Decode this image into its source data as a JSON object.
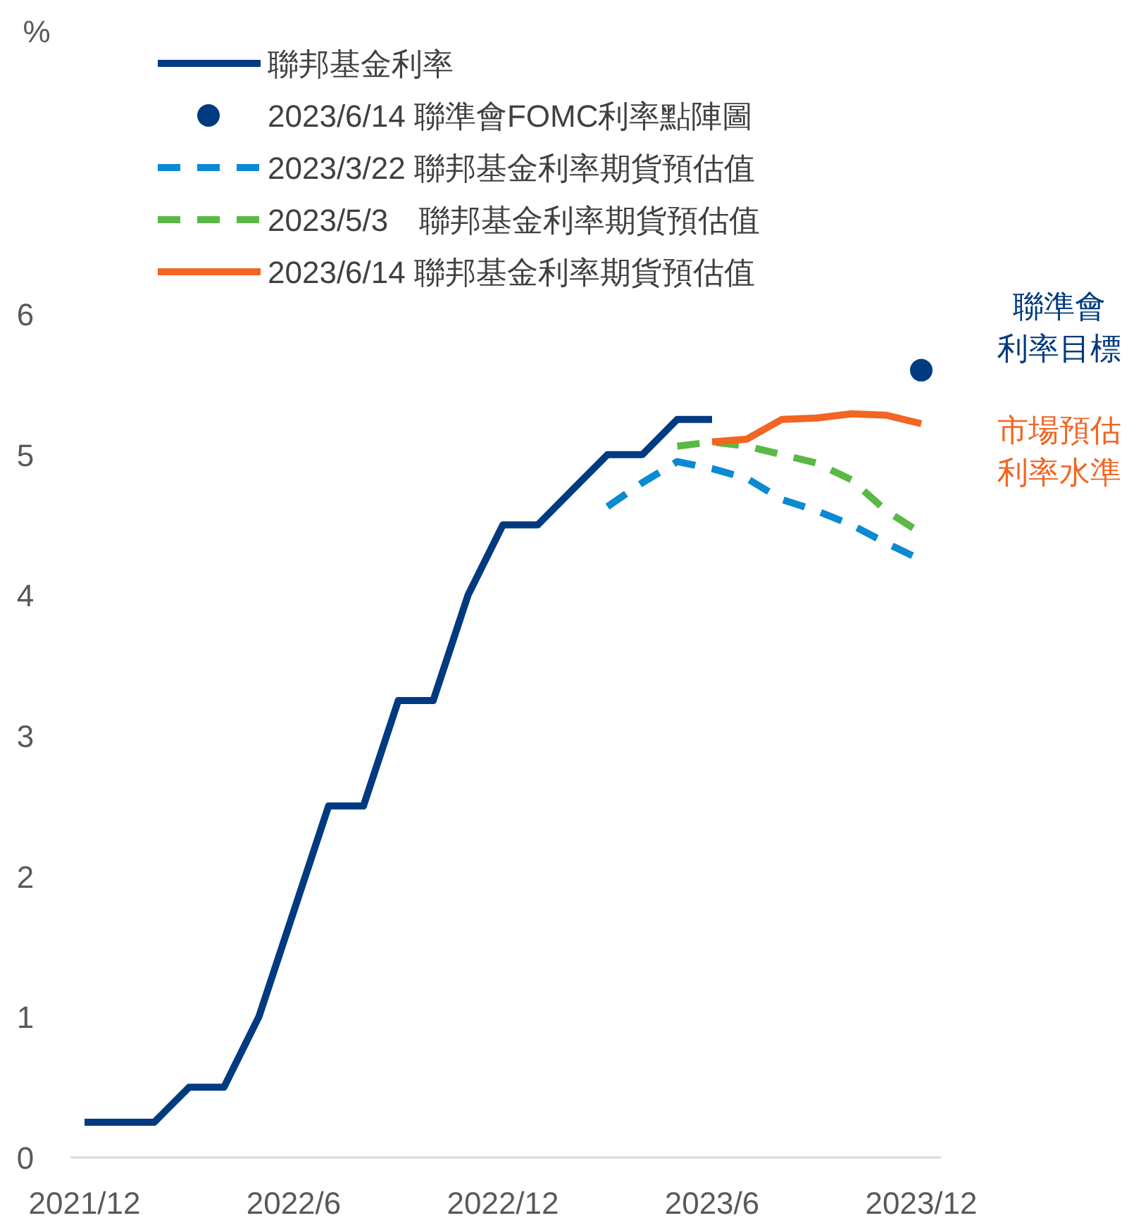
{
  "chart_data": {
    "type": "line",
    "categories": [
      "2021/12",
      null,
      null,
      null,
      null,
      null,
      "2022/6",
      null,
      null,
      null,
      null,
      null,
      "2022/12",
      null,
      null,
      null,
      null,
      null,
      "2023/6",
      null,
      null,
      null,
      null,
      null,
      "2023/12"
    ],
    "ylim": [
      0,
      6
    ],
    "yticks": [
      0,
      1,
      2,
      3,
      4,
      5,
      6
    ],
    "grid": false,
    "legend": "top left",
    "series": [
      {
        "name": "聯邦基金利率",
        "color": "#003a80",
        "line_style": "solid",
        "values": [
          0.25,
          0.25,
          0.25,
          0.5,
          0.5,
          1,
          1.75,
          2.5,
          2.5,
          3.25,
          3.25,
          4,
          4.5,
          4.5,
          4.75,
          5,
          5,
          5.25,
          5.25,
          null,
          null,
          null,
          null,
          null,
          null
        ]
      },
      {
        "name": "2023/6/14 聯準會FOMC利率點陣圖",
        "type": "scatter",
        "marker": "circle",
        "color": "#003a80",
        "values": [
          null,
          null,
          null,
          null,
          null,
          null,
          null,
          null,
          null,
          null,
          null,
          null,
          null,
          null,
          null,
          null,
          null,
          null,
          null,
          null,
          null,
          null,
          null,
          null,
          5.6
        ]
      },
      {
        "name": "2023/3/22 聯邦基金利率期貨預估值",
        "color": "#0a8ad2",
        "line_style": "dashed",
        "values": [
          null,
          null,
          null,
          null,
          null,
          null,
          null,
          null,
          null,
          null,
          null,
          null,
          null,
          null,
          null,
          4.63,
          4.8,
          4.95,
          4.9,
          4.83,
          4.68,
          4.6,
          4.5,
          4.37,
          4.25
        ]
      },
      {
        "name": "2023/5/3　聯邦基金利率期貨預估值",
        "color": "#5ab946",
        "line_style": "dashed",
        "values": [
          null,
          null,
          null,
          null,
          null,
          null,
          null,
          null,
          null,
          null,
          null,
          null,
          null,
          null,
          null,
          null,
          null,
          5.06,
          5.09,
          5.06,
          5.0,
          4.94,
          4.82,
          4.6,
          4.44
        ]
      },
      {
        "name": "2023/6/14 聯邦基金利率期貨預估值",
        "color": "#f26522",
        "line_style": "solid",
        "values": [
          null,
          null,
          null,
          null,
          null,
          null,
          null,
          null,
          null,
          null,
          null,
          null,
          null,
          null,
          null,
          null,
          null,
          null,
          5.09,
          5.11,
          5.25,
          5.26,
          5.29,
          5.28,
          5.22
        ]
      }
    ],
    "annotations": [
      "%",
      {
        "text": "聯準會利率目標",
        "x": "2023/12",
        "y": 5.6
      },
      {
        "text": "市場預估利率水準",
        "x": "2023/12",
        "y": 5.22
      }
    ]
  }
}
